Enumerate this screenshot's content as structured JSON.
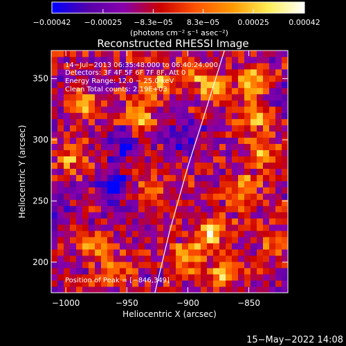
{
  "chart_data": {
    "type": "heatmap",
    "title": "Reconstructed RHESSI Image",
    "xlabel": "Heliocentric X (arcsec)",
    "ylabel": "Heliocentric Y (arcsec)",
    "xlim": [
      -1012,
      -818
    ],
    "ylim": [
      175,
      373
    ],
    "x_ticks": [
      {
        "value": -1000,
        "label": "−1000"
      },
      {
        "value": -950,
        "label": "−950"
      },
      {
        "value": -900,
        "label": "−900"
      },
      {
        "value": -850,
        "label": "−850"
      }
    ],
    "y_ticks": [
      {
        "value": 200,
        "label": "200"
      },
      {
        "value": 250,
        "label": "250"
      },
      {
        "value": 300,
        "label": "300"
      },
      {
        "value": 350,
        "label": "350"
      }
    ],
    "colorbar": {
      "min": -0.00042,
      "max": 0.00042,
      "ticks": [
        {
          "value": -0.00042,
          "label": "−0.00042"
        },
        {
          "value": -0.00025,
          "label": "−0.00025"
        },
        {
          "value": -8.3e-05,
          "label": "−8.3e−05"
        },
        {
          "value": 8.3e-05,
          "label": "8.3e−05"
        },
        {
          "value": 0.00025,
          "label": "0.00025"
        },
        {
          "value": 0.00042,
          "label": "0.00042"
        }
      ],
      "unit_label": "(photons cm⁻² s⁻¹ asec⁻²)",
      "colors": [
        "#0000ff",
        "#5500aa",
        "#8800aa",
        "#cc0000",
        "#ff5500",
        "#ff9900",
        "#ffee55",
        "#ffffff"
      ]
    },
    "annotations": [
      "14−Jul−2013 06:35:48.000 to 06:40:24.000",
      "Detectors: 3F 4F 5F 6F 7F 8F, Att 0",
      "Energy Range: 12.0 − 25.0 keV",
      "Clean    Total counts: 2.19E+03"
    ],
    "peak_label": "Position of Peak = [−846,349]",
    "peak": {
      "x": -846,
      "y": 349
    },
    "limb_line": [
      [
        -927,
        175
      ],
      [
        -915,
        225
      ],
      [
        -900,
        278
      ],
      [
        -885,
        325
      ],
      [
        -870,
        373
      ]
    ],
    "hot_spots": [
      {
        "x": -985,
        "y": 330,
        "amp": 0.0003
      },
      {
        "x": -995,
        "y": 285,
        "amp": 0.00028
      },
      {
        "x": -975,
        "y": 215,
        "amp": 0.00026
      },
      {
        "x": -940,
        "y": 320,
        "amp": 0.00034
      },
      {
        "x": -925,
        "y": 345,
        "amp": 0.0003
      },
      {
        "x": -900,
        "y": 355,
        "amp": 0.00022
      },
      {
        "x": -880,
        "y": 345,
        "amp": 0.0003
      },
      {
        "x": -846,
        "y": 349,
        "amp": 0.00042
      },
      {
        "x": -845,
        "y": 320,
        "amp": 0.00034
      },
      {
        "x": -838,
        "y": 290,
        "amp": 0.0003
      },
      {
        "x": -855,
        "y": 260,
        "amp": 0.00028
      },
      {
        "x": -880,
        "y": 225,
        "amp": 0.0004
      },
      {
        "x": -900,
        "y": 205,
        "amp": 0.00038
      },
      {
        "x": -870,
        "y": 190,
        "amp": 0.00036
      },
      {
        "x": -825,
        "y": 215,
        "amp": 0.00024
      },
      {
        "x": -930,
        "y": 260,
        "amp": 0.00024
      },
      {
        "x": -960,
        "y": 195,
        "amp": 0.00022
      }
    ],
    "cold_spots": [
      {
        "x": -960,
        "y": 260,
        "amp": -0.0003
      },
      {
        "x": -1005,
        "y": 250,
        "amp": -0.0002
      },
      {
        "x": -900,
        "y": 300,
        "amp": -0.00026
      },
      {
        "x": -820,
        "y": 340,
        "amp": -0.0002
      },
      {
        "x": -955,
        "y": 295,
        "amp": -0.00024
      }
    ]
  },
  "footer": {
    "timestamp": "15−May−2022 14:08"
  }
}
